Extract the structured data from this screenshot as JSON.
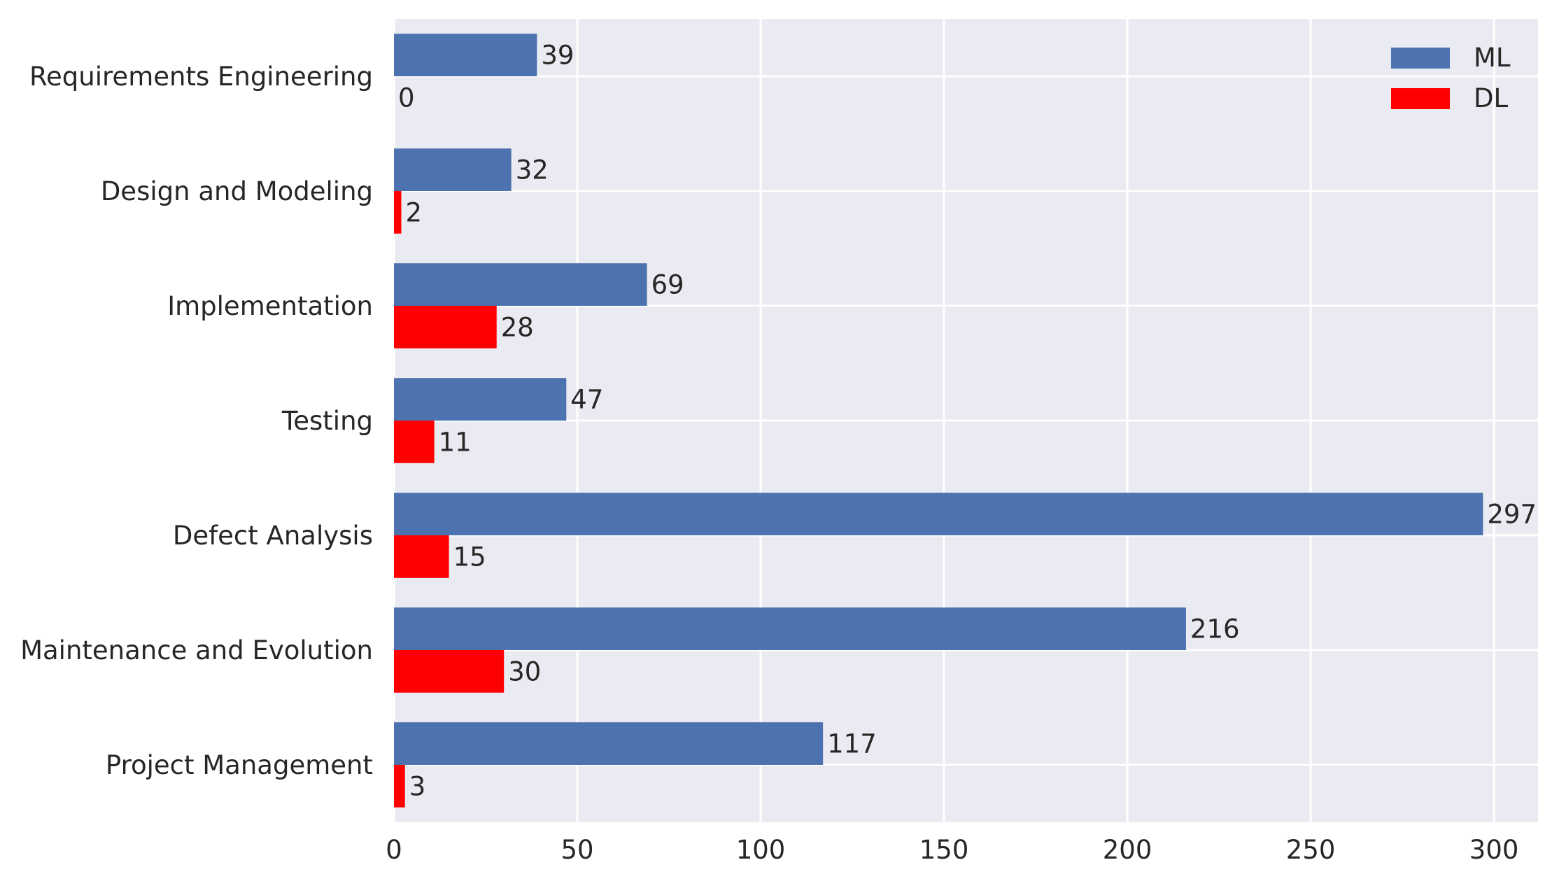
{
  "chart_data": {
    "type": "bar",
    "orientation": "horizontal",
    "categories": [
      "Requirements Engineering",
      "Design and Modeling",
      "Implementation",
      "Testing",
      "Defect Analysis",
      "Maintenance and Evolution",
      "Project Management"
    ],
    "series": [
      {
        "name": "ML",
        "color": "#4c72b0",
        "values": [
          39,
          32,
          69,
          47,
          297,
          216,
          117
        ]
      },
      {
        "name": "DL",
        "color": "#ff0000",
        "values": [
          0,
          2,
          28,
          11,
          15,
          30,
          3
        ]
      }
    ],
    "xlim": [
      0,
      312
    ],
    "xticks": [
      0,
      50,
      100,
      150,
      200,
      250,
      300
    ],
    "title": "",
    "xlabel": "",
    "ylabel": "",
    "grid": true,
    "background": "#eaeaf2",
    "legend": "top-right",
    "data_labels": true
  }
}
